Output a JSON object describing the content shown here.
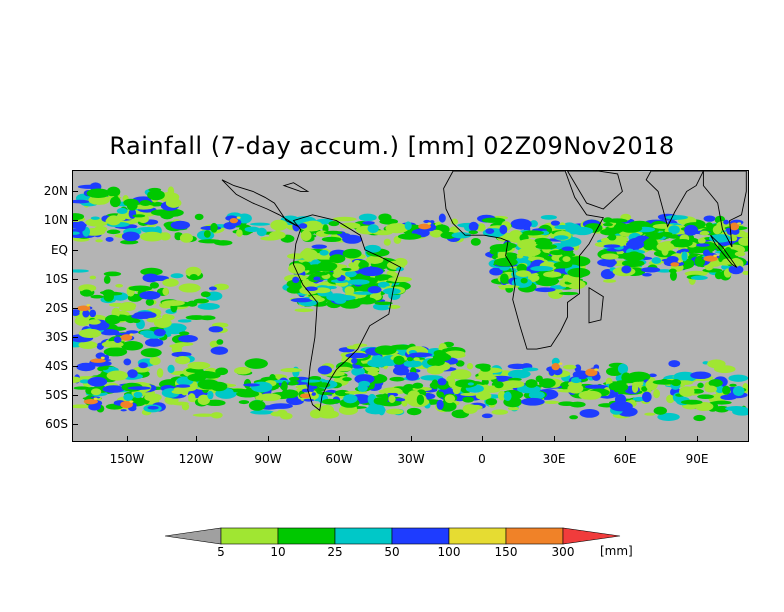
{
  "title": "Rainfall (7-day accum.) [mm] 02Z09Nov2018",
  "y_axis": [
    "20N",
    "10N",
    "EQ",
    "10S",
    "20S",
    "30S",
    "40S",
    "50S",
    "60S"
  ],
  "x_axis": [
    "150W",
    "120W",
    "90W",
    "60W",
    "30W",
    "0",
    "30E",
    "60E",
    "90E"
  ],
  "legend": {
    "thresholds": [
      "5",
      "10",
      "25",
      "50",
      "100",
      "150",
      "300"
    ],
    "unit": "[mm]",
    "colors": [
      "#a0a0a0",
      "#a0e632",
      "#00c800",
      "#00c8c8",
      "#1e3cff",
      "#e6dc32",
      "#f08228",
      "#f03c3c"
    ]
  },
  "map_colors": {
    "ocean_dry": "#b4b4b4",
    "land_dry": "#b4b4b4",
    "light": "#a0e632",
    "moderate": "#00c800",
    "heavy": "#00c8c8",
    "very_heavy": "#1e3cff",
    "intense": "#e6dc32",
    "extreme": "#f08228"
  }
}
